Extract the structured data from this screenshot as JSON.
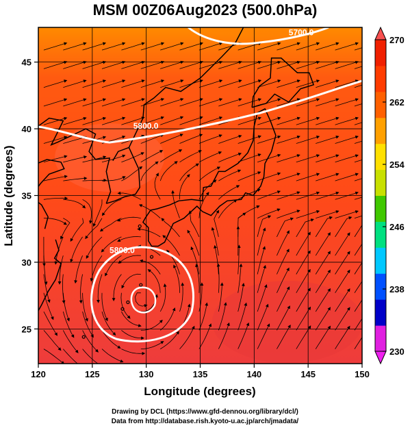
{
  "title": "MSM 00Z06Aug2023 (500.0hPa)",
  "xaxis": {
    "label": "Longitude (degrees)",
    "ticks": [
      120,
      125,
      130,
      135,
      140,
      145,
      150
    ],
    "range": [
      120,
      150
    ]
  },
  "yaxis": {
    "label": "Latitude  (degrees)",
    "ticks": [
      25,
      30,
      35,
      40,
      45
    ],
    "range": [
      22.4,
      47.6
    ]
  },
  "colorbar": {
    "min": 230,
    "max": 270,
    "ticks": [
      270,
      262,
      254,
      246,
      238,
      230
    ],
    "colors": [
      "#e020e0",
      "#0000c8",
      "#0050ff",
      "#00c8ff",
      "#00e080",
      "#40c800",
      "#c8e000",
      "#ffe000",
      "#ffa000",
      "#ff6000",
      "#ff3c00",
      "#f02000"
    ]
  },
  "contours": [
    {
      "label": "5800.0",
      "label_pos": [
        128.8,
        40.0
      ]
    },
    {
      "label": "5800.0",
      "label_pos": [
        126.6,
        30.7
      ]
    },
    {
      "label": "5700.0",
      "label_pos": [
        143.2,
        47.0
      ]
    }
  ],
  "credits": {
    "line1": "Drawing by DCL (https://www.gfd-dennou.org/library/dcl/)",
    "line2": "Data from http://database.rish.kyoto-u.ac.jp/arch/jmadata/"
  }
}
